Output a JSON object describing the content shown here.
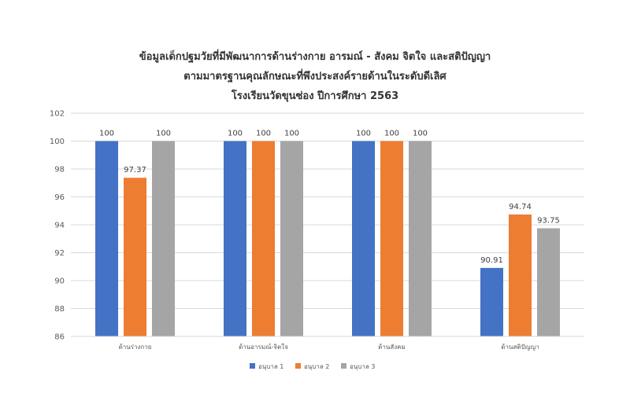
{
  "chart_data": {
    "type": "bar",
    "title_lines": [
      "ข้อมูลเด็กปฐมวัยที่มีพัฒนาการด้านร่างกาย อารมณ์ - สังคม จิตใจ และสติปัญญา",
      "ตามมาตรฐานคุณลักษณะที่พึงประสงค์รายด้านในระดับดีเลิศ",
      "โรงเรียนวัดขุนซ่อง ปีการศึกษา 2563"
    ],
    "categories": [
      "ด้านร่างกาย",
      "ด้านอารมณ์-จิตใจ",
      "ด้านสังคม",
      "ด้านสติปัญญา"
    ],
    "series": [
      {
        "name": "อนุบาล 1",
        "values": [
          100,
          100,
          100,
          90.91
        ],
        "labels": [
          "100",
          "100",
          "100",
          "90.91"
        ],
        "color": "#4472C4"
      },
      {
        "name": "อนุบาล 2",
        "values": [
          97.37,
          100,
          100,
          94.74
        ],
        "labels": [
          "97.37",
          "100",
          "100",
          "94.74"
        ],
        "color": "#ED7D31"
      },
      {
        "name": "อนุบาล 3",
        "values": [
          100,
          100,
          100,
          93.75
        ],
        "labels": [
          "100",
          "100",
          "100",
          "93.75"
        ],
        "color": "#A5A5A5"
      }
    ],
    "ylim": [
      86,
      102
    ],
    "yticks": [
      86,
      88,
      90,
      92,
      94,
      96,
      98,
      100,
      102
    ],
    "grid": true,
    "legend": "bottom-center",
    "gridline_color": "#D9D9D9"
  }
}
